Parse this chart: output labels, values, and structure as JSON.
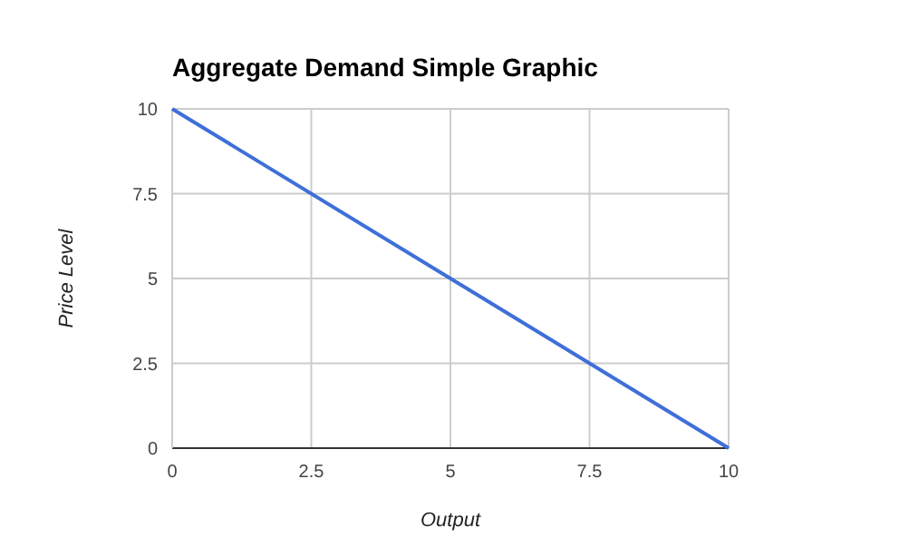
{
  "chart_data": {
    "type": "line",
    "title": "Aggregate Demand Simple Graphic",
    "xlabel": "Output",
    "ylabel": "Price Level",
    "x": [
      0,
      10
    ],
    "series": [
      {
        "color": "#3f6fd8",
        "values": [
          10,
          0
        ]
      }
    ],
    "xlim": [
      0,
      10
    ],
    "xticks": [
      0,
      2.5,
      5,
      7.5,
      10
    ],
    "ylim": [
      0,
      10
    ],
    "yticks": [
      0,
      2.5,
      5,
      7.5,
      10
    ],
    "grid": true,
    "marker": "none",
    "line_style": "solid"
  }
}
